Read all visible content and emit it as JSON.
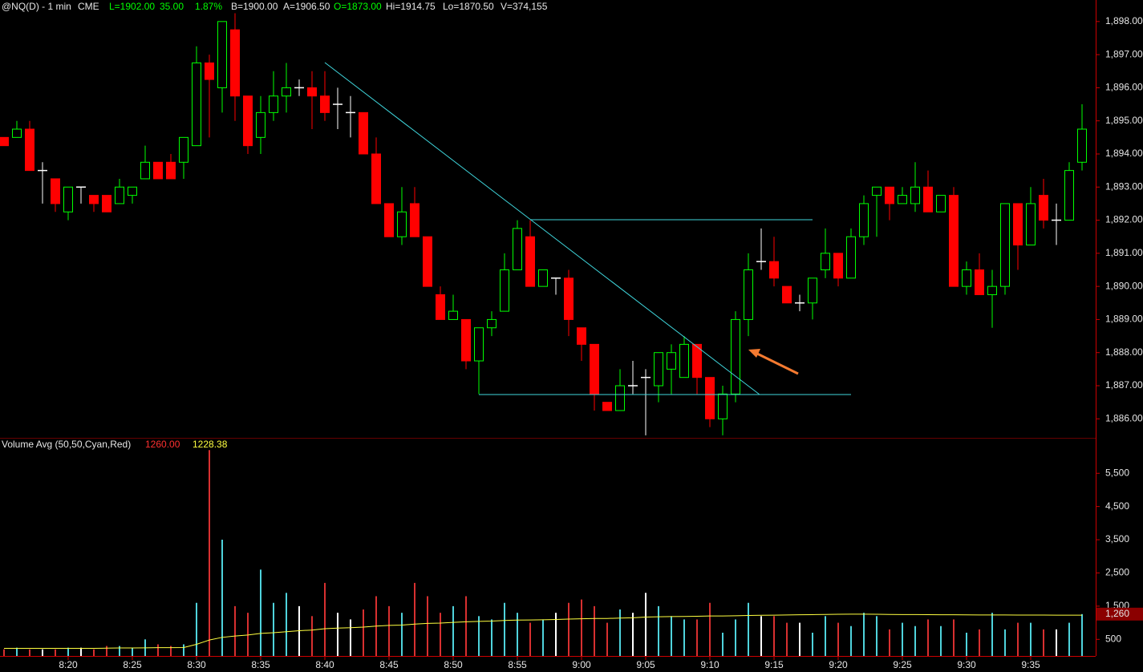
{
  "header": {
    "symbol": "@NQ(D) - 1 min",
    "exchange": "CME",
    "last": "L=1902.00",
    "change": "35.00",
    "change_pct": "1.87%",
    "bid": "B=1900.00",
    "ask": "A=1906.50",
    "open": "O=1873.00",
    "high": "Hi=1914.75",
    "low": "Lo=1870.50",
    "volume": "V=374,155"
  },
  "chart_data": [
    {
      "type": "candlestick",
      "open": [
        1894.5,
        1894.5,
        1894.75,
        1893.5,
        1893.25,
        1892.25,
        1893,
        1892.75,
        1892.75,
        1892.5,
        1892.75,
        1893.25,
        1893.75,
        1893.75,
        1893.75,
        1894.25,
        1896.75,
        1896,
        1897.75,
        1895.75,
        1894.5,
        1895.25,
        1895.75,
        1896,
        1896,
        1895.75,
        1895.5,
        1895.25,
        1895.25,
        1894,
        1892.5,
        1891.5,
        1892.5,
        1891.5,
        1889.75,
        1889,
        1889,
        1887.75,
        1888.75,
        1889.25,
        1890.5,
        1891.5,
        1890,
        1890.25,
        1890.25,
        1888.75,
        1888.25,
        1886.5,
        1886.25,
        1887,
        1887.25,
        1887,
        1887.5,
        1887.25,
        1888.25,
        1887.25,
        1886,
        1886.75,
        1889,
        1890.75,
        1890.75,
        1890,
        1889.5,
        1889.5,
        1890.5,
        1891,
        1890.25,
        1891.5,
        1892.75,
        1893,
        1892.5,
        1892.5,
        1893,
        1892.25,
        1892.75,
        1890,
        1890.5,
        1889.75,
        1890,
        1892.5,
        1891.25,
        1892.75,
        1892,
        1892,
        1893.75
      ],
      "high": [
        1894.5,
        1895,
        1895,
        1893.75,
        1893.25,
        1893,
        1893,
        1892.75,
        1892.75,
        1893.25,
        1893,
        1894.25,
        1893.75,
        1894,
        1894.5,
        1897.25,
        1897,
        1898,
        1898.25,
        1895.75,
        1895.75,
        1896.5,
        1896.75,
        1896.25,
        1896.5,
        1896.5,
        1896,
        1895.75,
        1895.25,
        1894.5,
        1892.5,
        1893,
        1893,
        1891.5,
        1890,
        1889.75,
        1889,
        1888.75,
        1889.25,
        1891,
        1892,
        1892,
        1890.5,
        1890.25,
        1890.5,
        1888.75,
        1888.25,
        1886.5,
        1887.5,
        1887.75,
        1887.5,
        1888,
        1888.25,
        1888.5,
        1888.25,
        1887.25,
        1887,
        1889.25,
        1891,
        1891.75,
        1891.5,
        1890,
        1889.75,
        1890.25,
        1891.75,
        1891,
        1891.75,
        1892.75,
        1893,
        1893,
        1893,
        1893.75,
        1893.5,
        1892.75,
        1893,
        1890.75,
        1891,
        1890.5,
        1892.5,
        1892.5,
        1893,
        1893.25,
        1892.5,
        1893.75,
        1895.5
      ],
      "low": [
        1894.25,
        1894.5,
        1893.5,
        1892.5,
        1892.25,
        1892,
        1892.5,
        1892.25,
        1892.25,
        1892.5,
        1892.5,
        1893.25,
        1893.25,
        1893.25,
        1893.25,
        1894.25,
        1894.5,
        1895.25,
        1895,
        1894,
        1894,
        1895,
        1895.25,
        1895.75,
        1894.75,
        1895,
        1894.75,
        1894.5,
        1894,
        1892.5,
        1891.5,
        1891.25,
        1891.5,
        1890,
        1889,
        1889,
        1887.5,
        1886.75,
        1888.5,
        1889.25,
        1890.5,
        1890,
        1890,
        1889.75,
        1888.5,
        1887.75,
        1886.25,
        1886.25,
        1886.25,
        1886.75,
        1885.5,
        1886.5,
        1886.75,
        1887.25,
        1886.75,
        1885.75,
        1885.5,
        1886.5,
        1888.5,
        1890.5,
        1890,
        1889.5,
        1889.25,
        1889,
        1890.25,
        1890,
        1890.25,
        1891.25,
        1891.5,
        1892,
        1892.5,
        1892.25,
        1892.25,
        1892.25,
        1890,
        1889.75,
        1889.75,
        1888.75,
        1889.75,
        1890.5,
        1891.25,
        1891.75,
        1891.25,
        1892,
        1893.5
      ],
      "close": [
        1894.25,
        1894.75,
        1893.5,
        1893.5,
        1892.5,
        1893,
        1893,
        1892.5,
        1892.25,
        1893,
        1893,
        1893.75,
        1893.25,
        1893.25,
        1894.5,
        1896.75,
        1896.25,
        1898,
        1895.75,
        1894.25,
        1895.25,
        1895.75,
        1896,
        1896,
        1895.75,
        1895.25,
        1895.5,
        1895.25,
        1894,
        1892.5,
        1891.5,
        1892.25,
        1891.5,
        1890,
        1889,
        1889.25,
        1887.75,
        1888.75,
        1889,
        1890.5,
        1891.75,
        1890,
        1890.5,
        1890.25,
        1889,
        1888.25,
        1886.75,
        1886.25,
        1887,
        1887,
        1887.25,
        1888,
        1888,
        1888.25,
        1887.25,
        1886,
        1886.75,
        1889,
        1890.5,
        1890.75,
        1890.25,
        1889.5,
        1889.5,
        1890.25,
        1891,
        1890.25,
        1891.5,
        1892.5,
        1893,
        1892.5,
        1892.75,
        1893,
        1892.25,
        1892.75,
        1890,
        1890.5,
        1889.75,
        1890,
        1892.5,
        1891.25,
        1892.5,
        1892,
        1892,
        1893.5,
        1894.75
      ],
      "up_color": "#00ff00",
      "down_color": "#ff0000",
      "flat_color": "#ffffff",
      "ylim": [
        1885.45,
        1898.65
      ],
      "yticks": [
        {
          "value": 1886,
          "label": "1,886.00"
        },
        {
          "value": 1887,
          "label": "1,887.00"
        },
        {
          "value": 1888,
          "label": "1,888.00"
        },
        {
          "value": 1889,
          "label": "1,889.00"
        },
        {
          "value": 1890,
          "label": "1,890.00"
        },
        {
          "value": 1891,
          "label": "1,891.00"
        },
        {
          "value": 1892,
          "label": "1,892.00"
        },
        {
          "value": 1893,
          "label": "1,893.00"
        },
        {
          "value": 1894,
          "label": "1,894.00"
        },
        {
          "value": 1895,
          "label": "1,895.00"
        },
        {
          "value": 1896,
          "label": "1,896.00"
        },
        {
          "value": 1897,
          "label": "1,897.00"
        },
        {
          "value": 1898,
          "label": "1,898.00"
        }
      ]
    },
    {
      "type": "bar",
      "title": "Volume Avg (50,50,Cyan,Red)",
      "categories": [
        null,
        null,
        null,
        null,
        null,
        "8:20",
        null,
        null,
        null,
        null,
        "8:25",
        null,
        null,
        null,
        null,
        "8:30",
        null,
        null,
        null,
        null,
        "8:35",
        null,
        null,
        null,
        null,
        "8:40",
        null,
        null,
        null,
        null,
        "8:45",
        null,
        null,
        null,
        null,
        "8:50",
        null,
        null,
        null,
        null,
        "8:55",
        null,
        null,
        null,
        null,
        "9:00",
        null,
        null,
        null,
        null,
        "9:05",
        null,
        null,
        null,
        null,
        "9:10",
        null,
        null,
        null,
        null,
        "9:15",
        null,
        null,
        null,
        null,
        "9:20",
        null,
        null,
        null,
        null,
        "9:25",
        null,
        null,
        null,
        null,
        "9:30",
        null,
        null,
        null,
        null,
        "9:35",
        null,
        null,
        null,
        null
      ],
      "series": [
        {
          "values": [
            200,
            250,
            200,
            200,
            200,
            250,
            250,
            200,
            300,
            300,
            250,
            500,
            350,
            300,
            350,
            1600,
            6200,
            3500,
            1500,
            1300,
            2600,
            1600,
            1900,
            1500,
            1200,
            2200,
            1300,
            1100,
            1400,
            1800,
            1500,
            1300,
            2200,
            1800,
            1300,
            1500,
            1800,
            1200,
            1100,
            1600,
            1300,
            1000,
            1100,
            1300,
            1600,
            1700,
            1500,
            1000,
            1400,
            1300,
            1900,
            1500,
            1200,
            1100,
            1100,
            1600,
            700,
            1100,
            1600,
            1200,
            1200,
            1000,
            1000,
            700,
            1200,
            1000,
            900,
            1300,
            1200,
            800,
            1000,
            900,
            1100,
            900,
            1100,
            700,
            800,
            1300,
            800,
            1000,
            1000,
            800,
            800,
            1000,
            1260
          ],
          "color": "#ff0000",
          "last_label": "1260.00",
          "axis_label": "1,260"
        },
        {
          "type": "line",
          "values": [
            230,
            230,
            230,
            230,
            230,
            230,
            230,
            230,
            235,
            240,
            240,
            245,
            250,
            250,
            255,
            350,
            480,
            560,
            600,
            630,
            680,
            700,
            730,
            760,
            780,
            820,
            840,
            850,
            870,
            900,
            920,
            930,
            960,
            980,
            990,
            1010,
            1030,
            1040,
            1050,
            1070,
            1080,
            1085,
            1090,
            1100,
            1110,
            1120,
            1130,
            1130,
            1140,
            1150,
            1170,
            1180,
            1185,
            1190,
            1195,
            1205,
            1205,
            1210,
            1220,
            1225,
            1230,
            1235,
            1240,
            1245,
            1250,
            1255,
            1260,
            1260,
            1255,
            1250,
            1248,
            1246,
            1244,
            1242,
            1240,
            1238,
            1236,
            1235,
            1234,
            1233,
            1232,
            1231,
            1230,
            1229,
            1228.38
          ],
          "color": "#ffff40",
          "last_label": "1228.38"
        }
      ],
      "up_color": "#4fd3dc",
      "down_color": "#d83030",
      "flat_color": "#ffffff",
      "ylim": [
        0,
        6520
      ],
      "yticks": [
        500,
        {
          "value": 1500,
          "label": "1,500"
        },
        {
          "value": 2500,
          "label": "2,500"
        },
        {
          "value": 3500,
          "label": "3,500"
        },
        {
          "value": 4500,
          "label": "4,500"
        },
        {
          "value": 5500,
          "label": "5,500"
        }
      ]
    }
  ]
}
